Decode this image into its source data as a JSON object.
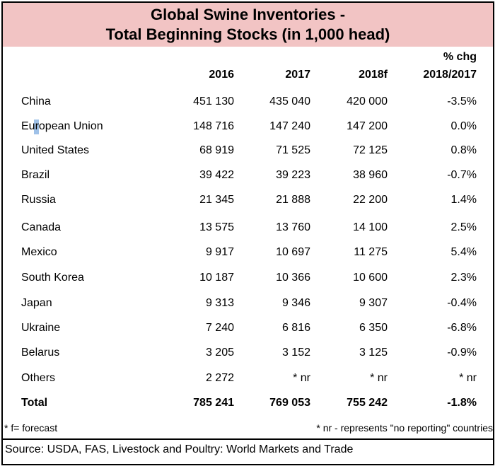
{
  "title": {
    "line1": "Global Swine Inventories -",
    "line2": "Total Beginning Stocks (in 1,000 head)"
  },
  "headers": {
    "y2016": "2016",
    "y2017": "2017",
    "y2018": "2018f",
    "chg_line1": "% chg",
    "chg_line2": "2018/2017"
  },
  "rows": [
    {
      "country": "China",
      "v2016": "451 130",
      "v2017": "435 040",
      "v2018": "420 000",
      "chg": "-3.5%"
    },
    {
      "country": "European Union",
      "v2016": "148 716",
      "v2017": "147 240",
      "v2018": "147 200",
      "chg": "0.0%"
    },
    {
      "country": "United States",
      "v2016": "68 919",
      "v2017": "71 525",
      "v2018": "72 125",
      "chg": "0.8%"
    },
    {
      "country": "Brazil",
      "v2016": "39 422",
      "v2017": "39 223",
      "v2018": "38 960",
      "chg": "-0.7%"
    },
    {
      "country": "Russia",
      "v2016": "21 345",
      "v2017": "21 888",
      "v2018": "22 200",
      "chg": "1.4%"
    },
    {
      "country": "Canada",
      "v2016": "13 575",
      "v2017": "13 760",
      "v2018": "14 100",
      "chg": "2.5%"
    },
    {
      "country": "Mexico",
      "v2016": "9 917",
      "v2017": "10 697",
      "v2018": "11 275",
      "chg": "5.4%"
    },
    {
      "country": "South Korea",
      "v2016": "10 187",
      "v2017": "10 366",
      "v2018": "10 600",
      "chg": "2.3%"
    },
    {
      "country": "Japan",
      "v2016": "9 313",
      "v2017": "9 346",
      "v2018": "9 307",
      "chg": "-0.4%"
    },
    {
      "country": "Ukraine",
      "v2016": "7 240",
      "v2017": "6 816",
      "v2018": "6 350",
      "chg": "-6.8%"
    },
    {
      "country": "Belarus",
      "v2016": "3 205",
      "v2017": "3 152",
      "v2018": "3 125",
      "chg": "-0.9%"
    },
    {
      "country": "Others",
      "v2016": "2 272",
      "v2017": "* nr",
      "v2018": "* nr",
      "chg": "* nr"
    }
  ],
  "total": {
    "label": "Total",
    "v2016": "785 241",
    "v2017": "769 053",
    "v2018": "755 242",
    "chg": "-1.8%"
  },
  "notes": {
    "forecast": "* f= forecast",
    "nr": "* nr - represents \"no reporting\" countries"
  },
  "source": "Source: USDA, FAS, Livestock and Poultry: World Markets and Trade",
  "colors": {
    "title_band": "#f2c4c4",
    "selection_mark": "#9fc1e8"
  }
}
